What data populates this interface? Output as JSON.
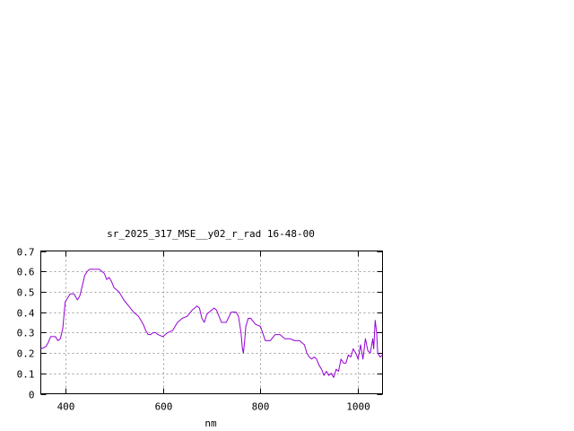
{
  "chart_data": {
    "type": "line",
    "title": "sr_2025_317_MSE__y02_r_rad 16-48-00",
    "xlabel": "nm",
    "ylabel": "",
    "xlim": [
      350,
      1050
    ],
    "ylim": [
      0,
      0.7
    ],
    "x_ticks": [
      400,
      600,
      800,
      1000
    ],
    "x_tick_labels": [
      "400",
      "600",
      "800",
      "1000"
    ],
    "y_ticks": [
      0,
      0.1,
      0.2,
      0.3,
      0.4,
      0.5,
      0.6,
      0.7
    ],
    "y_tick_labels": [
      "0",
      "0.1",
      "0.2",
      "0.3",
      "0.4",
      "0.5",
      "0.6",
      "0.7"
    ],
    "grid": true,
    "legend": "none",
    "series_color": "#9400d3",
    "series": [
      {
        "x": [
          350,
          360,
          365,
          370,
          380,
          385,
          390,
          395,
          400,
          410,
          418,
          425,
          430,
          435,
          440,
          445,
          450,
          455,
          460,
          470,
          475,
          480,
          485,
          490,
          495,
          500,
          505,
          510,
          520,
          530,
          540,
          550,
          555,
          560,
          565,
          570,
          575,
          580,
          585,
          590,
          600,
          610,
          620,
          630,
          640,
          650,
          660,
          665,
          670,
          675,
          680,
          685,
          690,
          695,
          700,
          705,
          710,
          715,
          720,
          730,
          740,
          750,
          755,
          760,
          763,
          765,
          768,
          770,
          775,
          780,
          790,
          800,
          810,
          820,
          830,
          840,
          850,
          860,
          870,
          880,
          890,
          895,
          900,
          905,
          910,
          915,
          920,
          925,
          930,
          935,
          940,
          945,
          950,
          955,
          960,
          965,
          970,
          975,
          980,
          985,
          990,
          995,
          1000,
          1005,
          1010,
          1015,
          1020,
          1025,
          1030,
          1032,
          1035,
          1038,
          1040,
          1045,
          1050
        ],
        "values": [
          0.22,
          0.23,
          0.25,
          0.28,
          0.28,
          0.26,
          0.27,
          0.32,
          0.45,
          0.49,
          0.49,
          0.46,
          0.48,
          0.53,
          0.58,
          0.6,
          0.61,
          0.61,
          0.61,
          0.61,
          0.6,
          0.59,
          0.56,
          0.57,
          0.55,
          0.52,
          0.51,
          0.5,
          0.46,
          0.43,
          0.4,
          0.38,
          0.36,
          0.34,
          0.31,
          0.29,
          0.29,
          0.3,
          0.3,
          0.29,
          0.28,
          0.3,
          0.31,
          0.35,
          0.37,
          0.38,
          0.41,
          0.42,
          0.43,
          0.42,
          0.37,
          0.35,
          0.39,
          0.4,
          0.41,
          0.42,
          0.41,
          0.38,
          0.35,
          0.35,
          0.4,
          0.4,
          0.38,
          0.3,
          0.22,
          0.2,
          0.27,
          0.33,
          0.37,
          0.37,
          0.34,
          0.33,
          0.26,
          0.26,
          0.29,
          0.29,
          0.27,
          0.27,
          0.26,
          0.26,
          0.24,
          0.2,
          0.18,
          0.17,
          0.18,
          0.17,
          0.14,
          0.12,
          0.09,
          0.11,
          0.09,
          0.1,
          0.08,
          0.12,
          0.11,
          0.17,
          0.15,
          0.15,
          0.19,
          0.18,
          0.22,
          0.2,
          0.17,
          0.24,
          0.17,
          0.27,
          0.21,
          0.2,
          0.27,
          0.22,
          0.36,
          0.3,
          0.2,
          0.18,
          0.19
        ]
      }
    ]
  }
}
